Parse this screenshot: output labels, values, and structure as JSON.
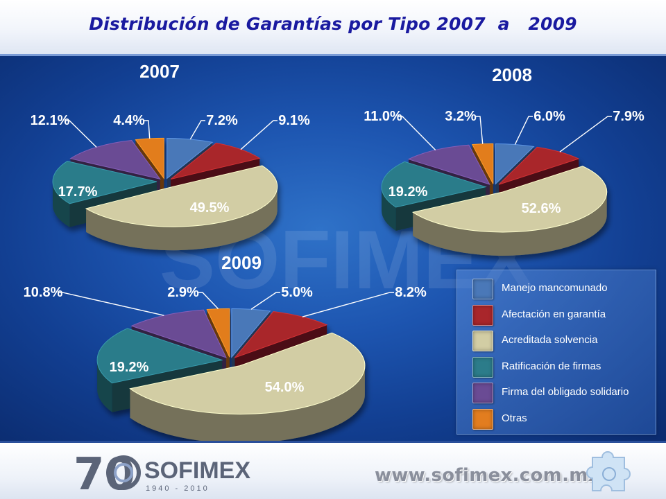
{
  "title": "Distribución de Garantías por Tipo 2007  a   2009",
  "footer": {
    "website": "www.sofimex.com.mx",
    "logo_number": "70",
    "logo_name": "SOFIMEX",
    "logo_years": "1940 - 2010"
  },
  "colors": {
    "Manejo mancomunado": "#4a78b8",
    "Afectación en garantía": "#a9262b",
    "Acreditada solvencia": "#d2cda4",
    "Ratificación de firmas": "#2c7c8a",
    "Firma del obligado solidario": "#6a4b94",
    "Otras": "#e27d1f"
  },
  "legend": [
    "Manejo mancomunado",
    "Afectación en garantía",
    "Acreditada solvencia",
    "Ratificación de firmas",
    "Firma del obligado solidario",
    "Otras"
  ],
  "chart_data": [
    {
      "type": "pie",
      "title": "2007",
      "categories": [
        "Manejo mancomunado",
        "Afectación en garantía",
        "Acreditada solvencia",
        "Ratificación de firmas",
        "Firma del obligado solidario",
        "Otras"
      ],
      "values": [
        7.2,
        9.1,
        49.5,
        17.7,
        12.1,
        4.4
      ],
      "labels": [
        "7.2%",
        "9.1%",
        "49.5%",
        "17.7%",
        "12.1%",
        "4.4%"
      ]
    },
    {
      "type": "pie",
      "title": "2008",
      "categories": [
        "Manejo mancomunado",
        "Afectación en garantía",
        "Acreditada solvencia",
        "Ratificación de firmas",
        "Firma del obligado solidario",
        "Otras"
      ],
      "values": [
        6.0,
        7.9,
        52.6,
        19.2,
        11.0,
        3.2
      ],
      "labels": [
        "6.0%",
        "7.9%",
        "52.6%",
        "19.2%",
        "11.0%",
        "3.2%"
      ]
    },
    {
      "type": "pie",
      "title": "2009",
      "categories": [
        "Manejo mancomunado",
        "Afectación en garantía",
        "Acreditada solvencia",
        "Ratificación de firmas",
        "Firma del obligado solidario",
        "Otras"
      ],
      "values": [
        5.0,
        8.2,
        54.0,
        19.2,
        10.8,
        2.9
      ],
      "labels": [
        "5.0%",
        "8.2%",
        "54.0%",
        "19.2%",
        "10.8%",
        "2.9%"
      ]
    }
  ]
}
